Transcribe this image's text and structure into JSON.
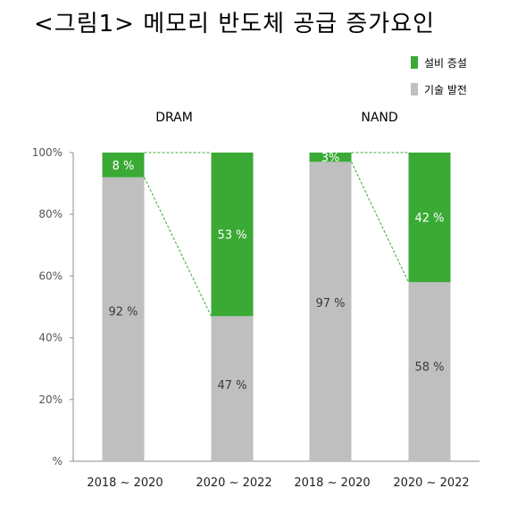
{
  "title": "<그림1> 메모리 반도체 공급 증가요인",
  "colors": {
    "equipment": "#3aaa35",
    "tech": "#bfbfbf",
    "axis": "#8c8c8c",
    "connector": "#3aaa35"
  },
  "chart_data": {
    "type": "bar",
    "stacked": true,
    "percent": true,
    "ylim": [
      0,
      100
    ],
    "yticks": [
      "%",
      "20%",
      "40%",
      "60%",
      "80%",
      "100%"
    ],
    "legend": {
      "position": "top-right",
      "entries": [
        "설비 증설",
        "기술 발전"
      ]
    },
    "series_order": [
      "기술 발전",
      "설비 증설"
    ],
    "groups": [
      {
        "label": "DRAM",
        "bars": [
          {
            "category": "2018 ~ 2020",
            "values": {
              "기술 발전": 92,
              "설비 증설": 8
            },
            "labels": {
              "기술 발전": "92 %",
              "설비 증설": "8 %"
            }
          },
          {
            "category": "2020 ~ 2022",
            "values": {
              "기술 발전": 47,
              "설비 증설": 53
            },
            "labels": {
              "기술 발전": "47 %",
              "설비 증설": "53 %"
            }
          }
        ]
      },
      {
        "label": "NAND",
        "bars": [
          {
            "category": "2018 ~ 2020",
            "values": {
              "기술 발전": 97,
              "설비 증설": 3
            },
            "labels": {
              "기술 발전": "97 %",
              "설비 증설": "3%"
            }
          },
          {
            "category": "2020 ~ 2022",
            "values": {
              "기술 발전": 58,
              "설비 증설": 42
            },
            "labels": {
              "기술 발전": "58 %",
              "설비 증설": "42 %"
            }
          }
        ]
      }
    ]
  }
}
